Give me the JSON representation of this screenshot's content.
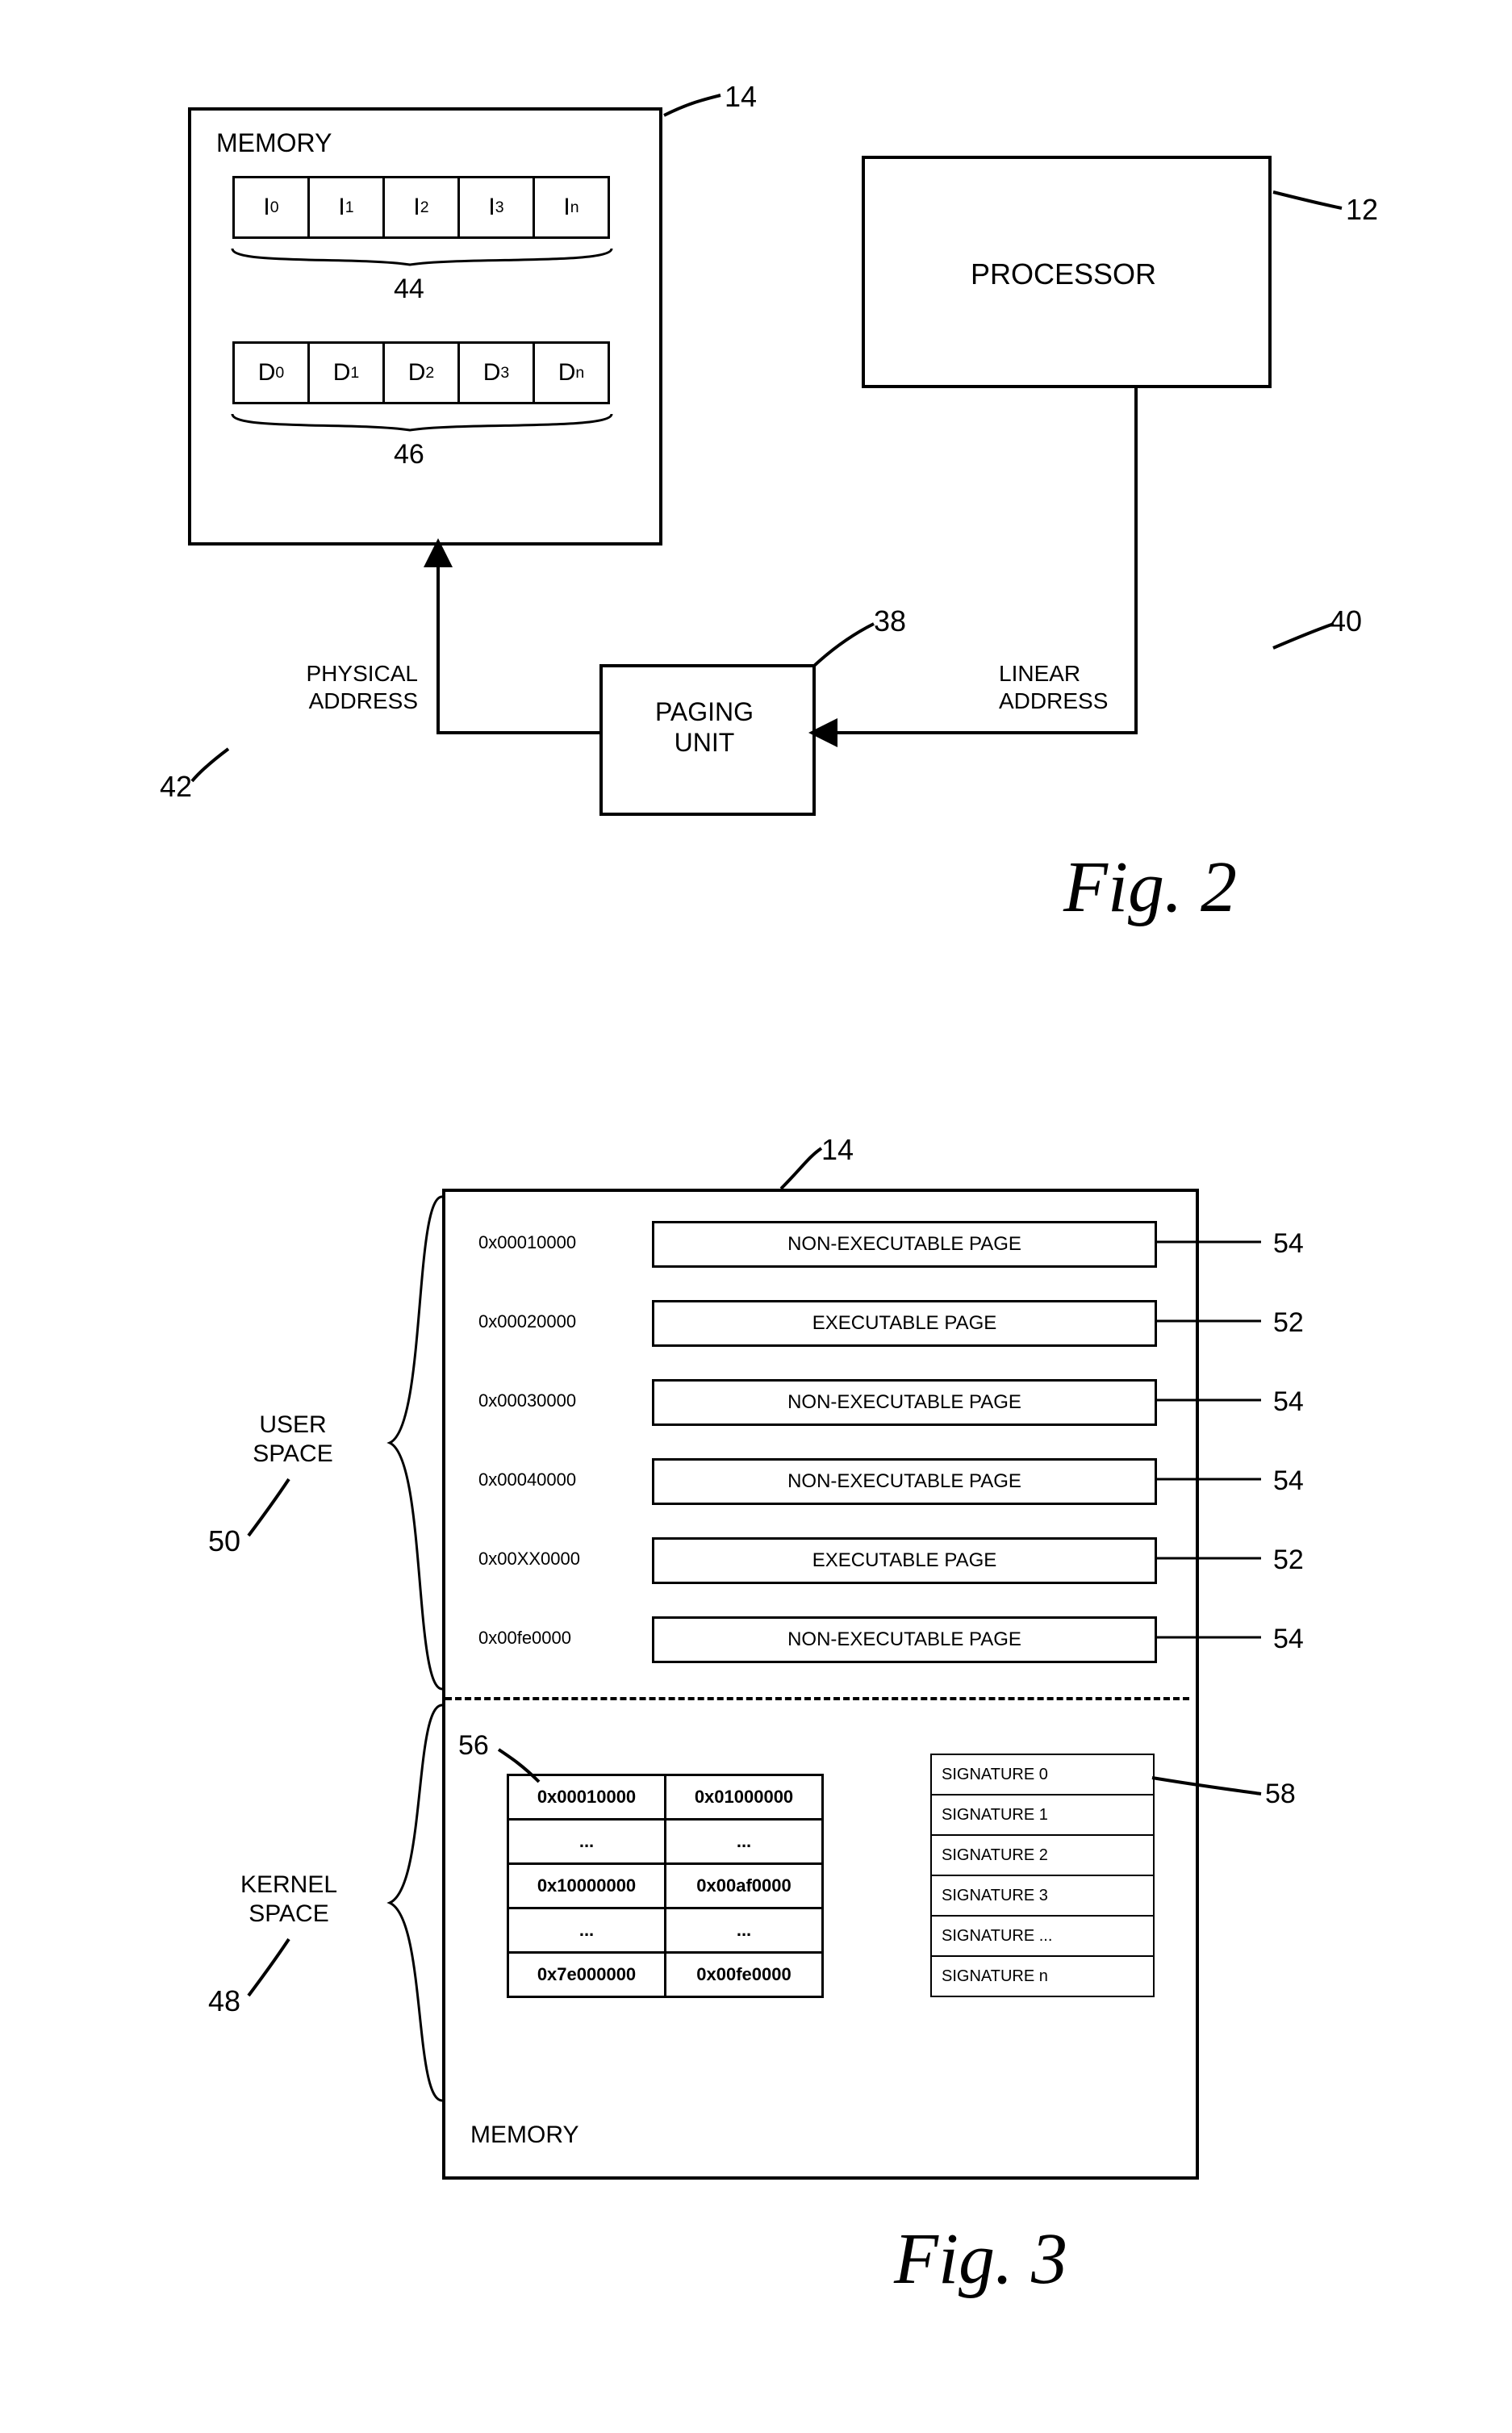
{
  "fig2": {
    "memory_label": "MEMORY",
    "processor_label": "PROCESSOR",
    "paging_label": "PAGING\nUNIT",
    "phys_addr": "PHYSICAL\nADDRESS",
    "linear_addr": "LINEAR\nADDRESS",
    "ref_memory": "14",
    "ref_processor": "12",
    "ref_paging": "38",
    "ref_linear": "40",
    "ref_phys": "42",
    "ref_irow": "44",
    "ref_drow": "46",
    "i_cells": [
      "I<sub>0</sub>",
      "I<sub>1</sub>",
      "I<sub>2</sub>",
      "I<sub>3</sub>",
      "I<sub>n</sub>"
    ],
    "d_cells": [
      "D<sub>0</sub>",
      "D<sub>1</sub>",
      "D<sub>2</sub>",
      "D<sub>3</sub>",
      "D<sub>n</sub>"
    ],
    "caption": "Fig. 2"
  },
  "fig3": {
    "ref_memory": "14",
    "ref_user": "50",
    "ref_kernel": "48",
    "ref_exec": "52",
    "ref_nonexec": "54",
    "ref_pagetable": "56",
    "ref_sig": "58",
    "user_label": "USER\nSPACE",
    "kernel_label": "KERNEL\nSPACE",
    "memory_label": "MEMORY",
    "caption": "Fig. 3",
    "pages": [
      {
        "addr": "0x00010000",
        "label": "NON-EXECUTABLE PAGE",
        "ref": "54"
      },
      {
        "addr": "0x00020000",
        "label": "EXECUTABLE PAGE",
        "ref": "52"
      },
      {
        "addr": "0x00030000",
        "label": "NON-EXECUTABLE PAGE",
        "ref": "54"
      },
      {
        "addr": "0x00040000",
        "label": "NON-EXECUTABLE PAGE",
        "ref": "54"
      },
      {
        "addr": "0x00XX0000",
        "label": "EXECUTABLE PAGE",
        "ref": "52"
      },
      {
        "addr": "0x00fe0000",
        "label": "NON-EXECUTABLE PAGE",
        "ref": "54"
      }
    ],
    "page_table": [
      [
        "0x00010000",
        "0x01000000"
      ],
      [
        "...",
        "..."
      ],
      [
        "0x10000000",
        "0x00af0000"
      ],
      [
        "...",
        "..."
      ],
      [
        "0x7e000000",
        "0x00fe0000"
      ]
    ],
    "signatures": [
      "SIGNATURE 0",
      "SIGNATURE 1",
      "SIGNATURE 2",
      "SIGNATURE 3",
      "SIGNATURE ...",
      "SIGNATURE n"
    ]
  },
  "style": {
    "stroke": "#000000",
    "stroke_width": 4,
    "bg": "#ffffff"
  }
}
